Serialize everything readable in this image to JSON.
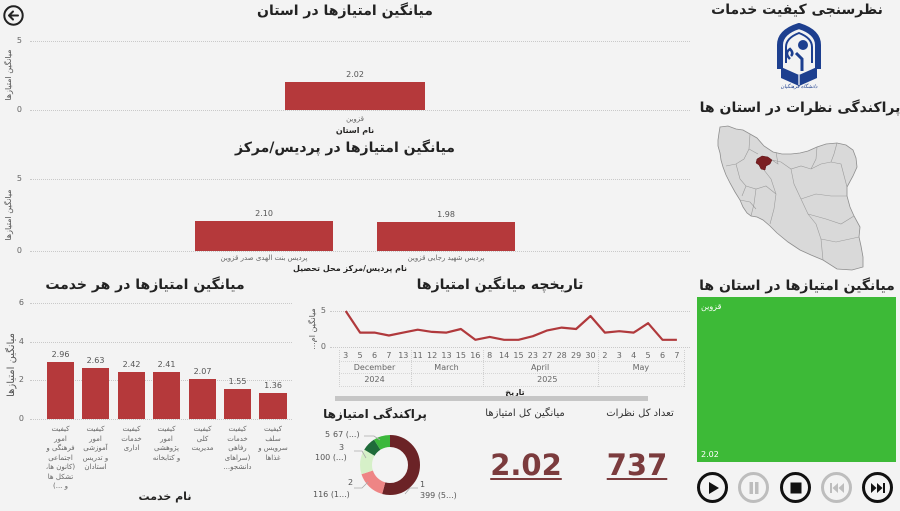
{
  "navigation": {
    "back_button": "back"
  },
  "header": {
    "survey_title": "نظرسنجی کیفیت خدمات",
    "logo_caption": "دانشگاه فرهنگیان",
    "map_title": "پراکندگی نظرات در استان ها",
    "map_highlighted_province": "قزوین"
  },
  "kpi": {
    "avg_title": "میانگین کل امتیازها",
    "avg_value": "2.02",
    "count_title": "تعداد کل نظرات",
    "count_value": "737"
  },
  "treemap": {
    "title": "میانگین امتیازها در استان ها",
    "label": "قزوین",
    "value": "2.02",
    "color": "#3dba37"
  },
  "player": {
    "buttons": [
      {
        "name": "play",
        "enabled": true
      },
      {
        "name": "pause",
        "enabled": false
      },
      {
        "name": "stop",
        "enabled": true
      },
      {
        "name": "previous",
        "enabled": false
      },
      {
        "name": "next",
        "enabled": true
      }
    ]
  },
  "colors": {
    "bar": "#b5393b",
    "line": "#b0393c",
    "kpi": "#7b3b3d",
    "map_fill": "#d9d9d9",
    "map_highlight": "#7a1f22",
    "logo": "#1d3f8f",
    "treemap": "#3dba37"
  },
  "chart_data": [
    {
      "type": "bar",
      "title": "میانگین امتیازها در استان",
      "categories": [
        "قزوین"
      ],
      "values": [
        2.02
      ],
      "value_labels": [
        "2.02"
      ],
      "xlabel": "نام استان",
      "ylabel": "میانگین امتیازها",
      "ylim": [
        0,
        5
      ],
      "yticks": [
        "0",
        "5"
      ],
      "grid": true
    },
    {
      "type": "bar",
      "title": "میانگین امتیازها در پردیس/مرکز",
      "categories": [
        "پردیس بنت الهدی صدر قزوین",
        "پردیس شهید رجایی قزوین"
      ],
      "values": [
        2.1,
        1.98
      ],
      "value_labels": [
        "2.10",
        "1.98"
      ],
      "xlabel": "نام پردیس/مرکز محل تحصیل",
      "ylabel": "میانگین امتیازها",
      "ylim": [
        0,
        5
      ],
      "yticks": [
        "0",
        "5"
      ],
      "grid": true
    },
    {
      "type": "bar",
      "title": "میانگین امتیازها در هر خدمت",
      "categories": [
        "کیفیت امور فرهنگی و اجتماعی (کانون ها، تشکل ها و ...)",
        "کیفیت امور آموزشی و تدریس استادان",
        "کیفیت خدمات اداری",
        "کیفیت امور پژوهشی و کتابخانه",
        "کیفیت کلی مدیریت",
        "کیفیت خدمات رفاهی (سراهای دانشجو...",
        "کیفیت سلف سرویس و غذاها"
      ],
      "category_lines": [
        [
          "کیفیت",
          "امور",
          "فرهنگی و",
          "اجتماعی",
          "(کانون ها،",
          "تشکل ها",
          "و ...)"
        ],
        [
          "کیفیت",
          "امور",
          "آموزشی",
          "و تدریس",
          "استادان"
        ],
        [
          "کیفیت",
          "خدمات",
          "اداری"
        ],
        [
          "کیفیت",
          "امور",
          "پژوهشی",
          "و کتابخانه"
        ],
        [
          "کیفیت",
          "کلی",
          "مدیریت"
        ],
        [
          "کیفیت",
          "خدمات",
          "رفاهی",
          "(سراهای",
          "دانشجو..."
        ],
        [
          "کیفیت",
          "سلف",
          "سرویس و",
          "غذاها"
        ]
      ],
      "values": [
        2.96,
        2.63,
        2.42,
        2.41,
        2.07,
        1.55,
        1.36
      ],
      "value_labels": [
        "2.96",
        "2.63",
        "2.42",
        "2.41",
        "2.07",
        "1.55",
        "1.36"
      ],
      "xlabel": "نام خدمت",
      "ylabel": "میانگین امتیازها",
      "ylim": [
        0,
        6
      ],
      "yticks": [
        "0",
        "2",
        "4",
        "6"
      ],
      "grid": true
    },
    {
      "type": "line",
      "title": "تاریخچه میانگین امتیازها",
      "x_day": [
        "3",
        "5",
        "6",
        "7",
        "13",
        "11",
        "12",
        "13",
        "15",
        "16",
        "8",
        "14",
        "15",
        "23",
        "27",
        "28",
        "29",
        "30",
        "2",
        "3",
        "4",
        "5",
        "6",
        "7"
      ],
      "x_months": [
        {
          "label": "December",
          "count": 5
        },
        {
          "label": "March",
          "count": 5
        },
        {
          "label": "April",
          "count": 8
        },
        {
          "label": "May",
          "count": 6
        }
      ],
      "x_years": [
        {
          "label": "2024",
          "count": 5
        },
        {
          "label": "2025",
          "count": 19
        }
      ],
      "values": [
        5.0,
        2.0,
        2.0,
        1.6,
        2.0,
        2.4,
        2.1,
        2.0,
        2.5,
        1.0,
        1.4,
        1.0,
        1.0,
        1.5,
        2.3,
        2.7,
        2.5,
        4.3,
        2.0,
        2.2,
        2.0,
        3.3,
        1.0,
        1.0
      ],
      "xlabel": "تاریخ",
      "ylabel": "میانگین ام...",
      "ylim": [
        0,
        5
      ],
      "yticks": [
        "0",
        "5"
      ],
      "grid": true
    },
    {
      "type": "pie",
      "title": "پراکندگی امتیازها",
      "categories": [
        "1",
        "2",
        "3",
        "4",
        "5"
      ],
      "values": [
        399,
        116,
        100,
        55,
        67
      ],
      "labels": [
        "399 (5...)",
        "116 (1...)",
        "100 (...)",
        "",
        "67 (...)"
      ],
      "colors": [
        "#6b2326",
        "#ee8585",
        "#d6f0c8",
        "#1f6b3a",
        "#3cb83c"
      ],
      "donut": true
    },
    {
      "type": "treemap",
      "title": "میانگین امتیازها در استان ها",
      "categories": [
        "قزوین"
      ],
      "values": [
        2.02
      ]
    }
  ]
}
